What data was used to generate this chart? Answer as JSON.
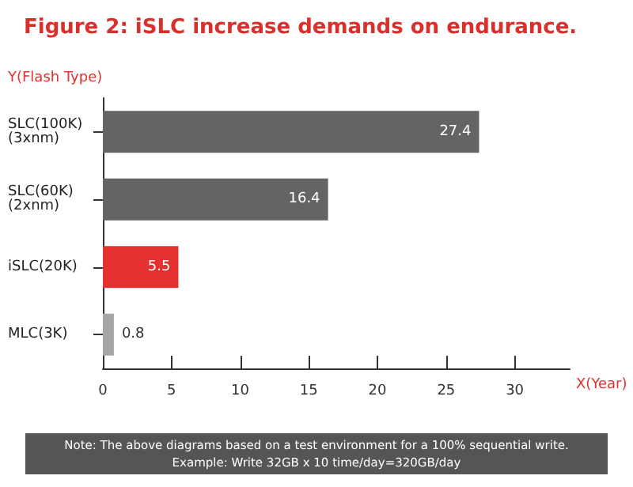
{
  "chart_data": {
    "type": "bar",
    "orientation": "horizontal",
    "title": "Figure 2: iSLC increase demands on endurance.",
    "ylabel": "Y(Flash Type)",
    "xlabel": "X(Year)",
    "categories": [
      "SLC(100K)\n(3xnm)",
      "SLC(60K)\n(2xnm)",
      "iSLC(20K)",
      "MLC(3K)"
    ],
    "values": [
      27.4,
      16.4,
      5.5,
      0.8
    ],
    "colors": [
      "#646464",
      "#646464",
      "#e2312e",
      "#a6a6a6"
    ],
    "xlim": [
      0,
      34
    ],
    "xticks": [
      0,
      5,
      10,
      15,
      20,
      25,
      30
    ],
    "data_labels": true,
    "annotations": [
      "Note: The above diagrams based on a test environment for a 100% sequential write.\nExample: Write 32GB x 10 time/day=320GB/day"
    ]
  }
}
